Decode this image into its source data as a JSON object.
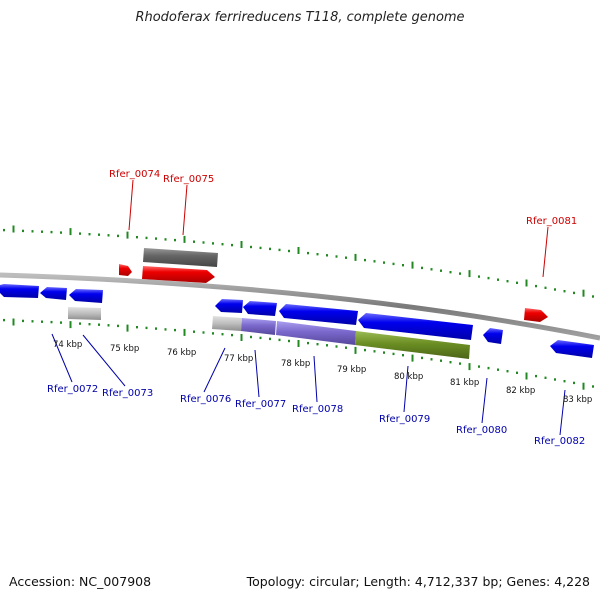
{
  "title": "Rhodoferax ferrireducens T118, complete genome",
  "footer": {
    "accession": "Accession: NC_007908",
    "summary": "Topology: circular; Length: 4,712,337 bp; Genes: 4,228"
  },
  "colors": {
    "forward_gene": "#ee0000",
    "reverse_gene": "#0000ee",
    "forward_label": "#cc0000",
    "reverse_label": "#0000aa",
    "backbone": "#888888",
    "tick": "#228822",
    "pseudo_gene": "#bbbbbb",
    "dark_gene": "#666666",
    "operon_purple": "#7b68cc",
    "operon_olive": "#6b8e23"
  },
  "scale_labels": [
    "74 kbp",
    "75 kbp",
    "76 kbp",
    "77 kbp",
    "78 kbp",
    "79 kbp",
    "80 kbp",
    "81 kbp",
    "82 kbp",
    "83 kbp"
  ],
  "forward_gene_labels": [
    "Rfer_0074",
    "Rfer_0075",
    "Rfer_0081"
  ],
  "reverse_gene_labels": [
    "Rfer_0072",
    "Rfer_0073",
    "Rfer_0076",
    "Rfer_0077",
    "Rfer_0078",
    "Rfer_0079",
    "Rfer_0080",
    "Rfer_0082"
  ]
}
